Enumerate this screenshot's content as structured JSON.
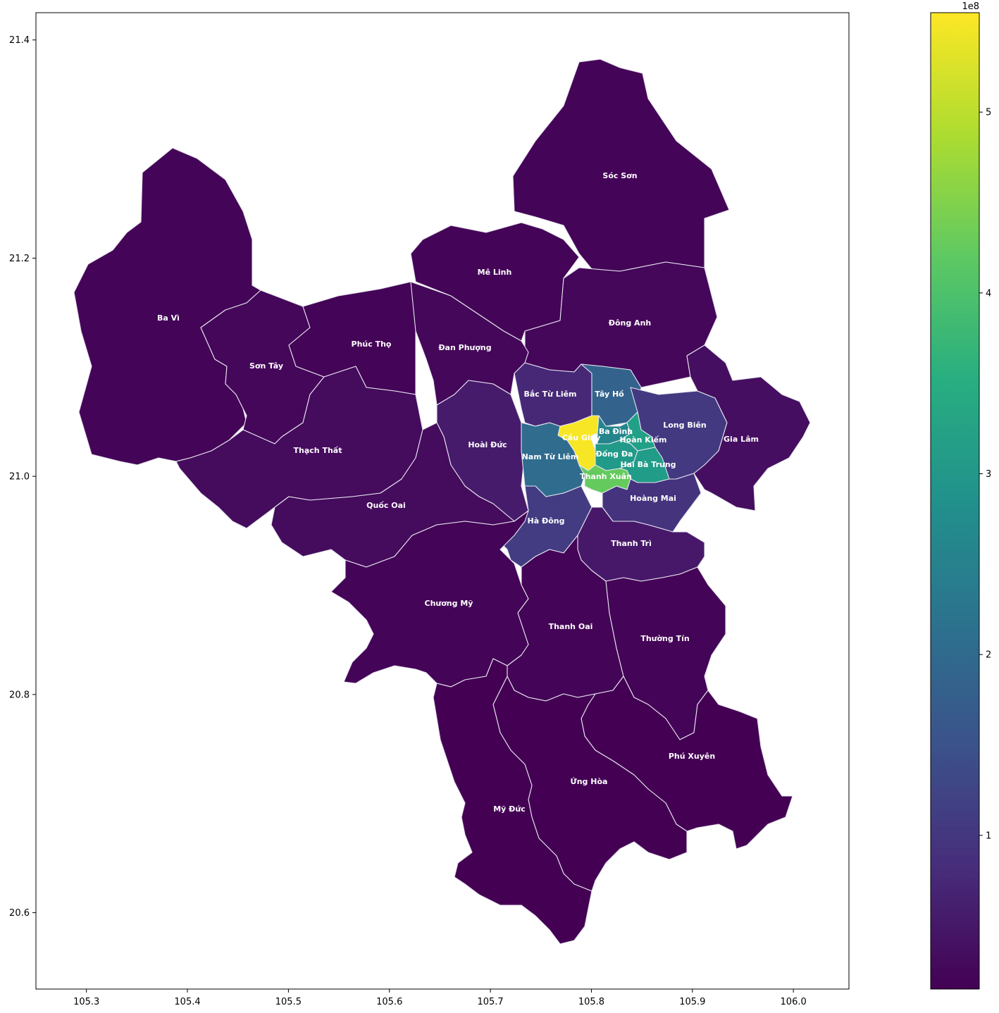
{
  "chart_data": {
    "type": "choropleth",
    "title": "",
    "xlabel": "",
    "ylabel": "",
    "xlim": [
      105.25,
      106.055
    ],
    "ylim": [
      20.53,
      21.425
    ],
    "x_ticks": [
      105.3,
      105.4,
      105.5,
      105.6,
      105.7,
      105.8,
      105.9,
      106.0
    ],
    "y_ticks": [
      20.6,
      20.8,
      21.0,
      21.2,
      21.4
    ],
    "x_tick_labels": [
      "105.3",
      "105.4",
      "105.5",
      "105.6",
      "105.7",
      "105.8",
      "105.9",
      "106.0"
    ],
    "y_tick_labels": [
      "20.6",
      "20.8",
      "21.0",
      "21.2",
      "21.4"
    ],
    "colormap": "viridis",
    "colorbar": {
      "min": 0.15,
      "max": 5.55,
      "ticks": [
        1,
        2,
        3,
        4,
        5
      ],
      "tick_labels": [
        "1",
        "2",
        "3",
        "4",
        "5"
      ],
      "multiplier_label": "1e8"
    },
    "regions": [
      {
        "name": "Sóc Sơn",
        "value": 0.2
      },
      {
        "name": "Mê Linh",
        "value": 0.2
      },
      {
        "name": "Đông Anh",
        "value": 0.25
      },
      {
        "name": "Ba Vì",
        "value": 0.2
      },
      {
        "name": "Sơn Tây",
        "value": 0.25
      },
      {
        "name": "Phúc Thọ",
        "value": 0.2
      },
      {
        "name": "Đan Phượng",
        "value": 0.25
      },
      {
        "name": "Thạch Thất",
        "value": 0.3
      },
      {
        "name": "Hoài Đức",
        "value": 0.55
      },
      {
        "name": "Quốc Oai",
        "value": 0.3
      },
      {
        "name": "Bắc Từ Liêm",
        "value": 0.75
      },
      {
        "name": "Tây Hồ",
        "value": 1.85
      },
      {
        "name": "Long Biên",
        "value": 1.05
      },
      {
        "name": "Gia Lâm",
        "value": 0.35
      },
      {
        "name": "Cầu Giấy",
        "value": 5.5
      },
      {
        "name": "Ba Đình",
        "value": 2.6
      },
      {
        "name": "Hoàn Kiếm",
        "value": 3.2
      },
      {
        "name": "Đống Đa",
        "value": 3.05
      },
      {
        "name": "Hai Bà Trưng",
        "value": 3.1
      },
      {
        "name": "Nam Từ Liêm",
        "value": 2.05
      },
      {
        "name": "Thanh Xuân",
        "value": 4.25
      },
      {
        "name": "Hoàng Mai",
        "value": 0.95
      },
      {
        "name": "Hà Đông",
        "value": 1.1
      },
      {
        "name": "Thanh Trì",
        "value": 0.5
      },
      {
        "name": "Chương Mỹ",
        "value": 0.2
      },
      {
        "name": "Thanh Oai",
        "value": 0.2
      },
      {
        "name": "Thường Tín",
        "value": 0.2
      },
      {
        "name": "Phú Xuyên",
        "value": 0.15
      },
      {
        "name": "Ứng Hòa",
        "value": 0.15
      },
      {
        "name": "Mỹ Đức",
        "value": 0.15
      }
    ]
  }
}
